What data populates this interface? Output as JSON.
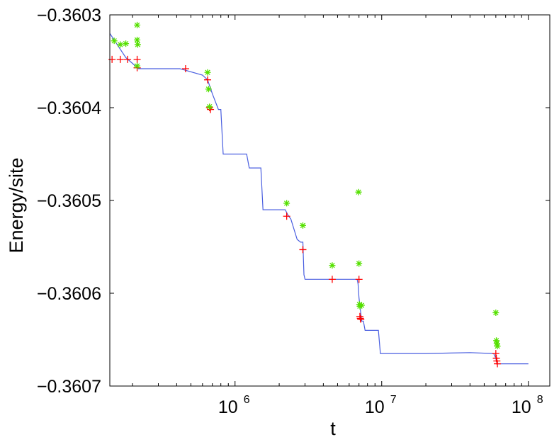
{
  "chart_data": {
    "type": "line",
    "title": "",
    "xlabel": "t",
    "ylabel": "Energy/site",
    "x_scale": "log",
    "xlim": [
      140000,
      140000000
    ],
    "ylim": [
      -0.3607,
      -0.3603
    ],
    "x_ticks": [
      {
        "value": 1000000,
        "base": "10",
        "exp": "6"
      },
      {
        "value": 10000000,
        "base": "10",
        "exp": "7"
      },
      {
        "value": 100000000,
        "base": "10",
        "exp": "8"
      }
    ],
    "y_ticks": [
      {
        "value": -0.3603,
        "label": "−0.3603"
      },
      {
        "value": -0.3604,
        "label": "−0.3604"
      },
      {
        "value": -0.3605,
        "label": "−0.3605"
      },
      {
        "value": -0.3606,
        "label": "−0.3606"
      },
      {
        "value": -0.3607,
        "label": "−0.3607"
      }
    ],
    "grid": false,
    "legend": "none",
    "series": [
      {
        "style": "line",
        "color": "#4a5fe0",
        "x": [
          140000,
          180000,
          220000,
          420000,
          600000,
          650000,
          700000,
          770000,
          800000,
          830000,
          1200000,
          1250000,
          1300000,
          1500000,
          1550000,
          2200000,
          2300000,
          2400000,
          2650000,
          2800000,
          2900000,
          2950000,
          3000000,
          4500000,
          6800000,
          6900000,
          7000000,
          7300000,
          7500000,
          7700000,
          9500000,
          9800000,
          20000000,
          40000000,
          58000000,
          60000000,
          61000000,
          62000000,
          100000000
        ],
        "y": [
          -0.36032,
          -0.360346,
          -0.360358,
          -0.360358,
          -0.360365,
          -0.36037,
          -0.360385,
          -0.360402,
          -0.360402,
          -0.36045,
          -0.36045,
          -0.360465,
          -0.360465,
          -0.360465,
          -0.36051,
          -0.36051,
          -0.360516,
          -0.36052,
          -0.360542,
          -0.360545,
          -0.360545,
          -0.36058,
          -0.360585,
          -0.360585,
          -0.360585,
          -0.36059,
          -0.360605,
          -0.36063,
          -0.36063,
          -0.36064,
          -0.36064,
          -0.360665,
          -0.360665,
          -0.360664,
          -0.360665,
          -0.36067,
          -0.360675,
          -0.360676,
          -0.360676
        ]
      },
      {
        "style": "markers-plus",
        "color": "#ff0000",
        "x": [
          145000,
          165000,
          185000,
          215000,
          215000,
          460000,
          650000,
          670000,
          680000,
          2250000,
          2900000,
          4600000,
          7000000,
          7100000,
          7150000,
          7200000,
          60000000,
          60500000,
          61000000,
          61500000
        ],
        "y": [
          -0.360348,
          -0.360348,
          -0.360348,
          -0.360348,
          -0.360357,
          -0.360358,
          -0.36037,
          -0.3604,
          -0.360402,
          -0.360517,
          -0.360553,
          -0.360585,
          -0.360585,
          -0.360625,
          -0.360627,
          -0.360628,
          -0.360665,
          -0.36067,
          -0.360673,
          -0.360676
        ]
      },
      {
        "style": "markers-star",
        "color": "#55e000",
        "x": [
          150000,
          165000,
          180000,
          215000,
          215000,
          217000,
          215000,
          650000,
          660000,
          670000,
          2250000,
          2900000,
          4600000,
          6950000,
          7000000,
          7050000,
          7100000,
          7300000,
          60000000,
          60500000,
          61000000,
          61500000
        ],
        "y": [
          -0.360328,
          -0.360332,
          -0.360331,
          -0.360311,
          -0.360327,
          -0.360332,
          -0.360355,
          -0.360362,
          -0.36038,
          -0.360399,
          -0.360503,
          -0.360527,
          -0.36057,
          -0.360491,
          -0.360568,
          -0.360612,
          -0.360614,
          -0.360613,
          -0.360621,
          -0.360651,
          -0.360654,
          -0.360657
        ]
      }
    ]
  }
}
